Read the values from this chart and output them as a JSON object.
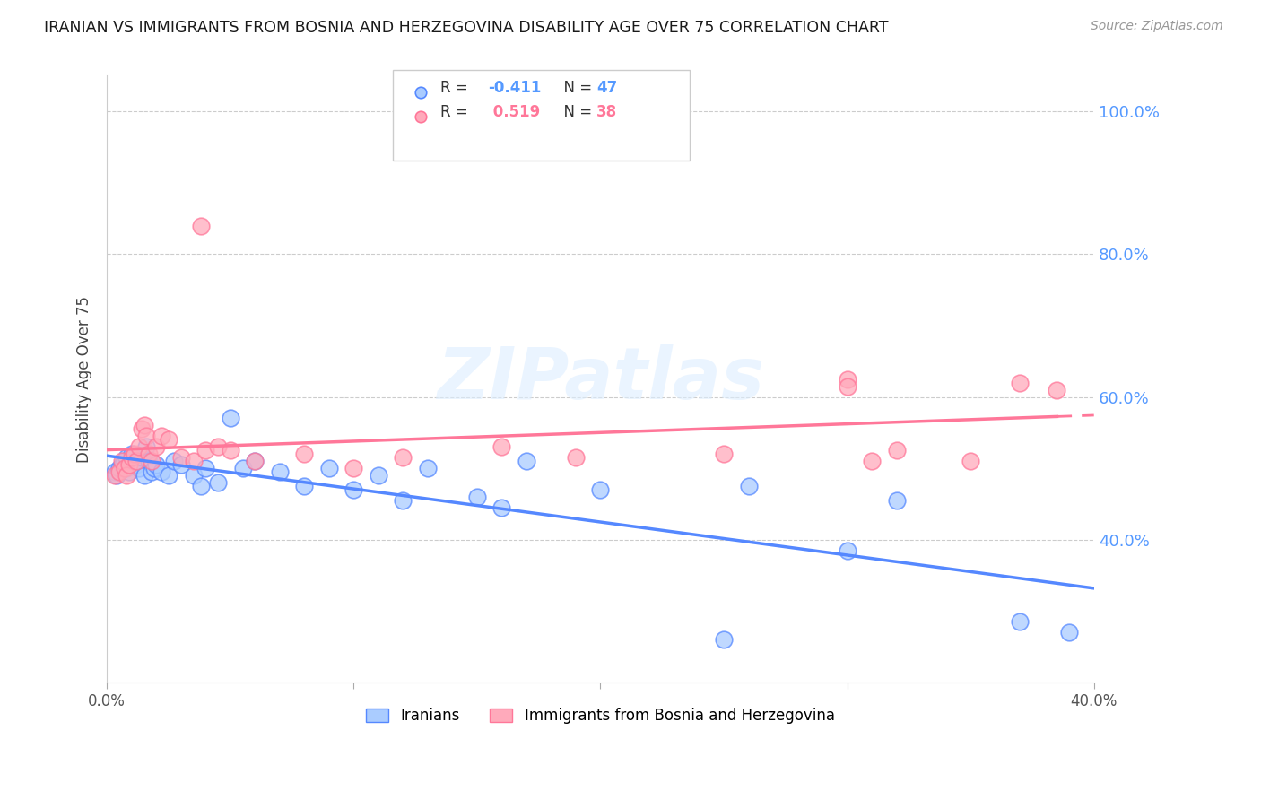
{
  "title": "IRANIAN VS IMMIGRANTS FROM BOSNIA AND HERZEGOVINA DISABILITY AGE OVER 75 CORRELATION CHART",
  "source": "Source: ZipAtlas.com",
  "ylabel": "Disability Age Over 75",
  "x_min": 0.0,
  "x_max": 0.4,
  "y_min": 0.2,
  "y_max": 1.05,
  "color_blue": "#aaccff",
  "color_pink": "#ffaabb",
  "color_blue_line": "#5588ff",
  "color_pink_line": "#ff7799",
  "color_ytick": "#5599ff",
  "color_watermark": "#ddeeff",
  "iranians_x": [
    0.003,
    0.004,
    0.005,
    0.006,
    0.007,
    0.008,
    0.008,
    0.009,
    0.01,
    0.011,
    0.012,
    0.013,
    0.014,
    0.015,
    0.016,
    0.017,
    0.018,
    0.019,
    0.02,
    0.022,
    0.025,
    0.027,
    0.03,
    0.035,
    0.038,
    0.04,
    0.045,
    0.05,
    0.055,
    0.06,
    0.07,
    0.08,
    0.09,
    0.1,
    0.11,
    0.12,
    0.13,
    0.15,
    0.16,
    0.17,
    0.2,
    0.25,
    0.26,
    0.3,
    0.32,
    0.37,
    0.39
  ],
  "iranians_y": [
    0.495,
    0.49,
    0.5,
    0.505,
    0.51,
    0.5,
    0.515,
    0.495,
    0.52,
    0.51,
    0.505,
    0.5,
    0.515,
    0.49,
    0.53,
    0.51,
    0.495,
    0.5,
    0.505,
    0.495,
    0.49,
    0.51,
    0.505,
    0.49,
    0.475,
    0.5,
    0.48,
    0.57,
    0.5,
    0.51,
    0.495,
    0.475,
    0.5,
    0.47,
    0.49,
    0.455,
    0.5,
    0.46,
    0.445,
    0.51,
    0.47,
    0.26,
    0.475,
    0.385,
    0.455,
    0.285,
    0.27
  ],
  "bosnia_x": [
    0.003,
    0.005,
    0.006,
    0.007,
    0.008,
    0.009,
    0.01,
    0.011,
    0.012,
    0.013,
    0.014,
    0.015,
    0.016,
    0.017,
    0.018,
    0.02,
    0.022,
    0.025,
    0.03,
    0.035,
    0.04,
    0.045,
    0.05,
    0.06,
    0.08,
    0.1,
    0.12,
    0.16,
    0.19,
    0.25,
    0.3,
    0.31,
    0.32,
    0.35,
    0.37,
    0.385,
    0.038,
    0.3
  ],
  "bosnia_y": [
    0.49,
    0.495,
    0.51,
    0.5,
    0.49,
    0.505,
    0.515,
    0.52,
    0.51,
    0.53,
    0.555,
    0.56,
    0.545,
    0.52,
    0.51,
    0.53,
    0.545,
    0.54,
    0.515,
    0.51,
    0.525,
    0.53,
    0.525,
    0.51,
    0.52,
    0.5,
    0.515,
    0.53,
    0.515,
    0.52,
    0.625,
    0.51,
    0.525,
    0.51,
    0.62,
    0.61,
    0.84,
    0.615
  ]
}
